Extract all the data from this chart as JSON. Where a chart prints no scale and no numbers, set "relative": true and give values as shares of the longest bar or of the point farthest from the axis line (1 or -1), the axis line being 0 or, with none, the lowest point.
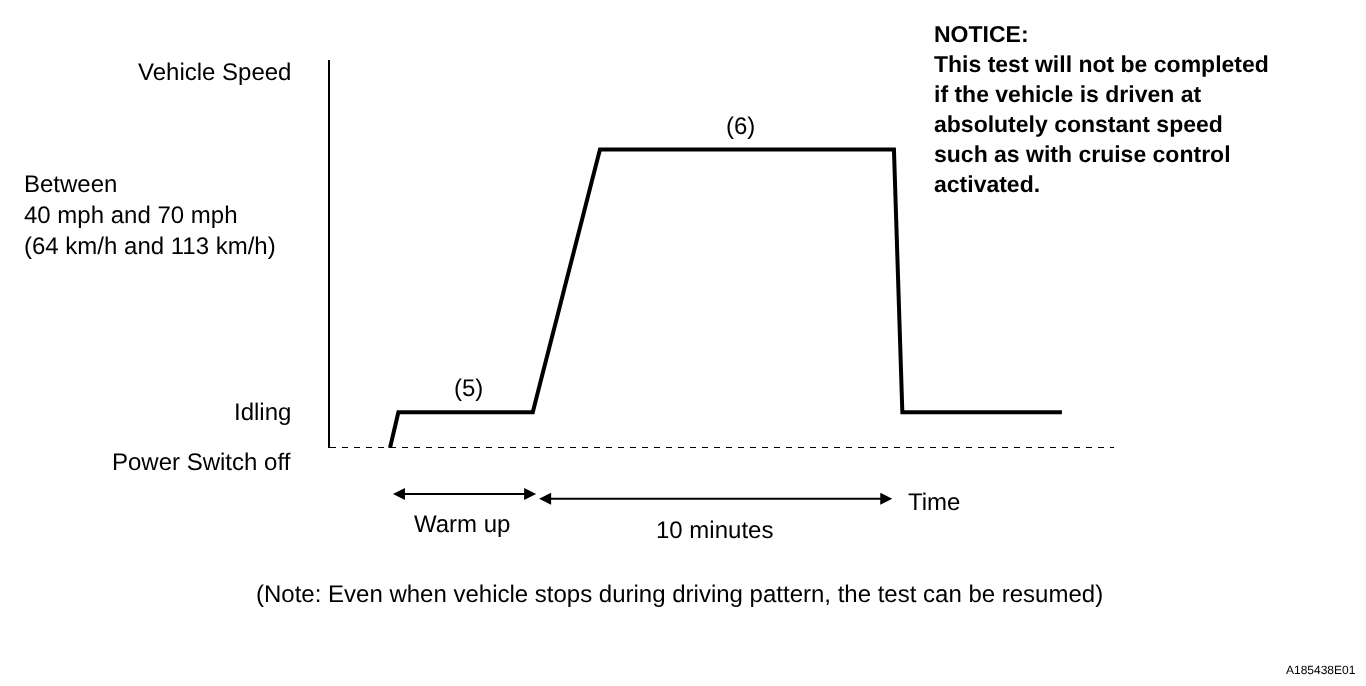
{
  "chart_data": {
    "type": "line",
    "relative": true,
    "ylabel": "Vehicle Speed",
    "xlabel": "Time",
    "color": "#000000",
    "marker": "none",
    "line_style": "solid",
    "categories": [
      null,
      null,
      null,
      null,
      null,
      null,
      null,
      null,
      null,
      null,
      null,
      null,
      null,
      null,
      null,
      null,
      null,
      null,
      null,
      null,
      null,
      null,
      null,
      null,
      null,
      null,
      null,
      null,
      null,
      null,
      null,
      null,
      null,
      null,
      null,
      null,
      null,
      null,
      null,
      null,
      null,
      null,
      null,
      null,
      null,
      null,
      null,
      null,
      null,
      null,
      null,
      null,
      null,
      null,
      null,
      null,
      null,
      null,
      null,
      null,
      null,
      null,
      null,
      null,
      null,
      null,
      null,
      null,
      null,
      null,
      null,
      null,
      null,
      null,
      null,
      null,
      null,
      null,
      null,
      null,
      null
    ],
    "values": [
      0,
      0.12,
      0.12,
      0.12,
      0.12,
      0.12,
      0.12,
      0.12,
      0.12,
      0.12,
      0.12,
      0.12,
      0.12,
      0.12,
      0.12,
      0.12,
      0.12,
      0.12,
      0.23,
      0.34,
      0.45,
      0.56,
      0.67,
      0.78,
      0.89,
      1,
      1,
      1,
      1,
      1,
      1,
      1,
      1,
      1,
      1,
      1,
      1,
      1,
      1,
      1,
      1,
      1,
      1,
      1,
      1,
      1,
      1,
      1,
      1,
      1,
      1,
      1,
      1,
      1,
      1,
      1,
      1,
      1,
      1,
      1,
      1,
      0.12,
      0.12,
      0.12,
      0.12,
      0.12,
      0.12,
      0.12,
      0.12,
      0.12,
      0.12,
      0.12,
      0.12,
      0.12,
      0.12,
      0.12,
      0.12,
      0.12,
      0.12,
      0.12,
      0.12
    ],
    "annotations": [
      {
        "text": "(5)",
        "y": 0.12
      },
      {
        "text": "(6)",
        "y": 1
      },
      "Idling",
      "Power Switch off",
      "Between\n40 mph and 70 mph\n(64 km/h and 113 km/h)",
      "Warm up",
      "10 minutes",
      "NOTICE:\nThis test will not be completed\nif the vehicle is driven at\nabsolutely constant speed\nsuch as with cruise control\nactivated.",
      "(Note: Even when vehicle stops during driving pattern, the test can be resumed)",
      "A185438E01"
    ]
  }
}
